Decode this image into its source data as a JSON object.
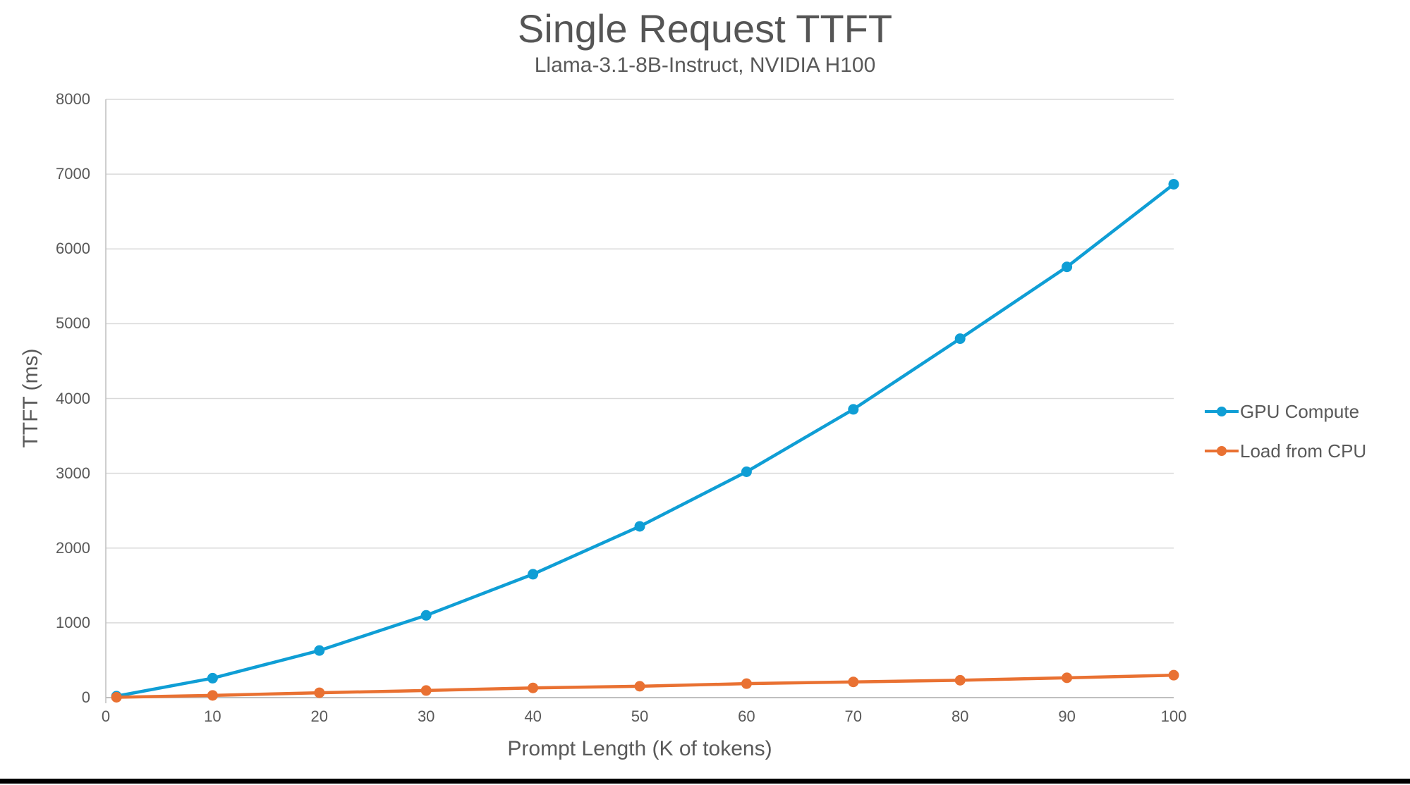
{
  "chart_data": {
    "type": "line",
    "title": "Single Request TTFT",
    "subtitle": "Llama-3.1-8B-Instruct, NVIDIA H100",
    "xlabel": "Prompt Length (K of tokens)",
    "ylabel": "TTFT (ms)",
    "x": [
      1,
      10,
      20,
      30,
      40,
      50,
      60,
      70,
      80,
      90,
      100
    ],
    "series": [
      {
        "name": "GPU Compute",
        "color": "#0F9ED5",
        "values": [
          20,
          260,
          630,
          1100,
          1650,
          2290,
          3020,
          3855,
          4800,
          5760,
          6865
        ]
      },
      {
        "name": "Load from CPU",
        "color": "#E97132",
        "values": [
          5,
          30,
          65,
          95,
          130,
          152,
          187,
          210,
          232,
          265,
          300
        ]
      }
    ],
    "xlim": [
      0,
      100
    ],
    "ylim": [
      0,
      8000
    ],
    "x_ticks": [
      0,
      10,
      20,
      30,
      40,
      50,
      60,
      70,
      80,
      90,
      100
    ],
    "y_ticks": [
      0,
      1000,
      2000,
      3000,
      4000,
      5000,
      6000,
      7000,
      8000
    ],
    "grid": "horizontal-only",
    "legend_position": "right-middle",
    "styles": {
      "grid_color": "#D9D9D9",
      "axis_color": "#BFBFBF",
      "text_color": "#595959",
      "background": "#FFFFFF",
      "bottom_bar_color": "#000000"
    }
  }
}
